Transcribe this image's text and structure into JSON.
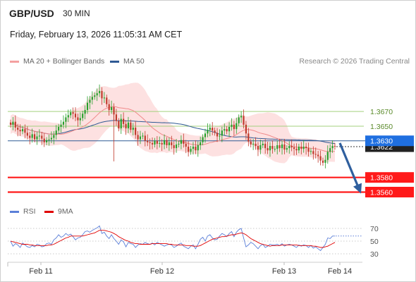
{
  "header": {
    "symbol": "GBP/USD",
    "timeframe": "30 MIN",
    "datetime": "Friday, February 13, 2026 11:05:31 AM CET",
    "copyright": "Research © 2026 Trading Central"
  },
  "legend": {
    "ma20": "MA 20 + Bollinger Bands",
    "ma50": "MA 50",
    "rsi": "RSI",
    "ma9": "9MA"
  },
  "colors": {
    "bollinger_fill": "#fde1e1",
    "ma20": "#f08a8a",
    "ma50": "#2f5a94",
    "candle_up": "#27a02c",
    "candle_down": "#c0392b",
    "support": "#ff1a1a",
    "resistance": "#a3d07e",
    "last_price": "#1f6fe0",
    "arrow": "#2f5f9e",
    "rsi": "#5b7fd8",
    "rsi_ma": "#e00000"
  },
  "chart_data": [
    {
      "type": "candlestick",
      "title": "GBP/USD 30 MIN",
      "x_labels": [
        "Feb 11",
        "Feb 12",
        "Feb 13",
        "Feb 14"
      ],
      "y_range": [
        1.3547,
        1.3725
      ],
      "levels": [
        {
          "value": 1.367,
          "label": "1.3670",
          "kind": "resistance"
        },
        {
          "value": 1.365,
          "label": "1.3650",
          "kind": "resistance"
        },
        {
          "value": 1.363,
          "label": "1.3630",
          "kind": "pivot"
        },
        {
          "value": 1.358,
          "label": "1.3580",
          "kind": "support"
        },
        {
          "value": 1.356,
          "label": "1.3560",
          "kind": "support"
        }
      ],
      "last_price": {
        "value": 1.3622,
        "label": "1.3622"
      },
      "forecast_arrow": {
        "from": 1.3627,
        "to": 1.3558
      },
      "close": [
        1.3652,
        1.3656,
        1.3648,
        1.3645,
        1.3643,
        1.3646,
        1.3641,
        1.3637,
        1.3634,
        1.3639,
        1.3632,
        1.3636,
        1.3637,
        1.3633,
        1.3628,
        1.3631,
        1.3632,
        1.3634,
        1.3638,
        1.3644,
        1.3649,
        1.3652,
        1.3656,
        1.3662,
        1.3665,
        1.3669,
        1.3667,
        1.3662,
        1.3658,
        1.3661,
        1.3667,
        1.3672,
        1.3682,
        1.3686,
        1.369,
        1.3692,
        1.3695,
        1.3698,
        1.3688,
        1.3689,
        1.368,
        1.3672,
        1.3676,
        1.3666,
        1.3657,
        1.3647,
        1.366,
        1.3653,
        1.3647,
        1.3655,
        1.3645,
        1.3648,
        1.3638,
        1.3632,
        1.3636,
        1.3637,
        1.363,
        1.3628,
        1.3627,
        1.3625,
        1.363,
        1.3626,
        1.3627,
        1.3625,
        1.3631,
        1.3624,
        1.3628,
        1.3624,
        1.362,
        1.3625,
        1.3626,
        1.3631,
        1.3626,
        1.3622,
        1.3615,
        1.3619,
        1.3622,
        1.3617,
        1.3624,
        1.3628,
        1.3635,
        1.364,
        1.3645,
        1.3648,
        1.3644,
        1.3641,
        1.3636,
        1.3637,
        1.3644,
        1.3646,
        1.3643,
        1.3649,
        1.3652,
        1.3646,
        1.3654,
        1.3662,
        1.3664,
        1.3652,
        1.364,
        1.3629,
        1.3625,
        1.3626,
        1.3623,
        1.3618,
        1.3624,
        1.3626,
        1.362,
        1.3617,
        1.3623,
        1.3619,
        1.3619,
        1.3624,
        1.362,
        1.3625,
        1.3618,
        1.362,
        1.3623,
        1.3621,
        1.3619,
        1.3617,
        1.3622,
        1.3619,
        1.3622,
        1.362,
        1.3615,
        1.3616,
        1.3612,
        1.3611,
        1.3609,
        1.3603,
        1.36,
        1.3604,
        1.3615,
        1.362,
        1.3623,
        1.3622
      ],
      "y_tick_labels": [
        "1.3670",
        "1.3650",
        "1.3630",
        "1.3622",
        "1.3580",
        "1.3560"
      ]
    },
    {
      "type": "line",
      "title": "RSI",
      "y_range": [
        20,
        80
      ],
      "y_ticks": [
        70,
        50,
        30
      ],
      "series": [
        {
          "name": "RSI",
          "values": [
            50,
            42,
            46,
            44,
            40,
            47,
            44,
            41,
            40,
            43,
            41,
            45,
            44,
            41,
            42,
            46,
            47,
            45,
            52,
            55,
            60,
            56,
            58,
            62,
            59,
            61,
            57,
            52,
            55,
            56,
            60,
            65,
            66,
            64,
            67,
            69,
            71,
            74,
            62,
            64,
            58,
            54,
            60,
            54,
            50,
            45,
            52,
            49,
            41,
            48,
            46,
            45,
            40,
            44,
            46,
            45,
            48,
            46,
            45,
            47,
            44,
            48,
            46,
            44,
            42,
            44,
            45,
            44,
            40,
            42,
            45,
            47,
            42,
            40,
            38,
            42,
            44,
            38,
            45,
            53,
            56,
            50,
            58,
            60,
            55,
            52,
            53,
            58,
            62,
            60,
            57,
            62,
            65,
            57,
            64,
            68,
            70,
            55,
            41,
            44,
            48,
            46,
            42,
            38,
            43,
            45,
            40,
            42,
            45,
            44,
            44,
            45,
            43,
            46,
            42,
            44,
            45,
            44,
            42,
            40,
            44,
            42,
            44,
            43,
            40,
            43,
            39,
            41,
            38,
            35,
            40,
            45,
            55,
            54,
            58,
            58
          ]
        },
        {
          "name": "9MA",
          "values": [
            50,
            49,
            48,
            47,
            46,
            45,
            45,
            45,
            44,
            44,
            43,
            43,
            43,
            43,
            43,
            43,
            44,
            44,
            45,
            47,
            49,
            51,
            53,
            55,
            56,
            58,
            58,
            58,
            58,
            58,
            58,
            59,
            60,
            61,
            62,
            63,
            65,
            67,
            67,
            67,
            66,
            65,
            64,
            62,
            60,
            57,
            55,
            53,
            51,
            50,
            48,
            47,
            46,
            46,
            45,
            45,
            45,
            45,
            45,
            46,
            46,
            46,
            46,
            46,
            46,
            46,
            45,
            45,
            44,
            44,
            44,
            44,
            44,
            43,
            43,
            43,
            42,
            42,
            42,
            43,
            45,
            47,
            49,
            51,
            53,
            54,
            55,
            56,
            57,
            57,
            58,
            59,
            60,
            60,
            61,
            62,
            63,
            62,
            60,
            57,
            54,
            52,
            50,
            48,
            46,
            45,
            44,
            43,
            42,
            43,
            43,
            43,
            43,
            44,
            44,
            44,
            44,
            44,
            44,
            44,
            43,
            43,
            43,
            43,
            43,
            43,
            42,
            42,
            41,
            40,
            40,
            41,
            42,
            44,
            46,
            48
          ]
        }
      ]
    }
  ]
}
